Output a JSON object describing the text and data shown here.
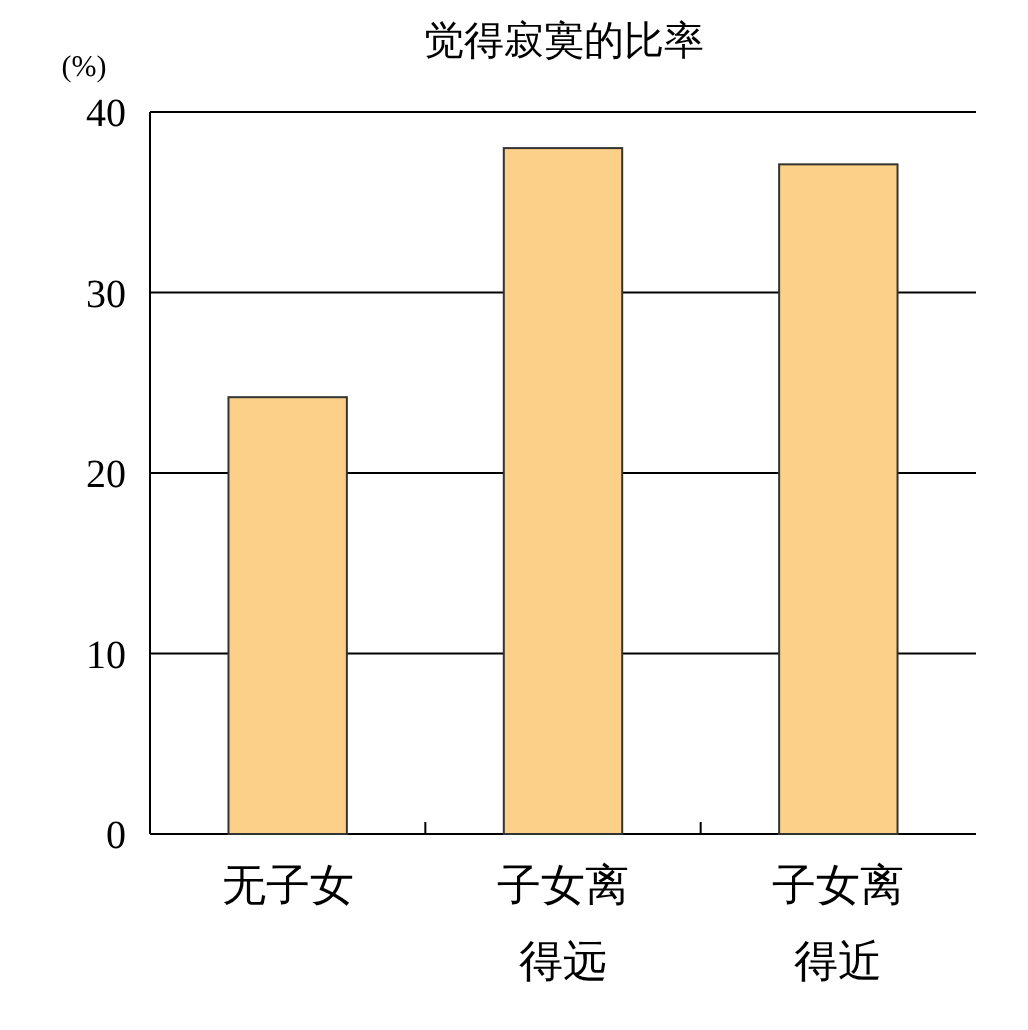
{
  "chart_data": {
    "type": "bar",
    "title": "觉得寂寞的比率",
    "ylabel": "(%)",
    "categories": [
      "无子女",
      "子女离得远",
      "子女离得近"
    ],
    "values": [
      24.2,
      38,
      37.1
    ],
    "color": "#fdd08a",
    "ylim": [
      0,
      40
    ],
    "yticks": [
      0,
      10,
      20,
      30,
      40
    ],
    "grid": "y"
  }
}
